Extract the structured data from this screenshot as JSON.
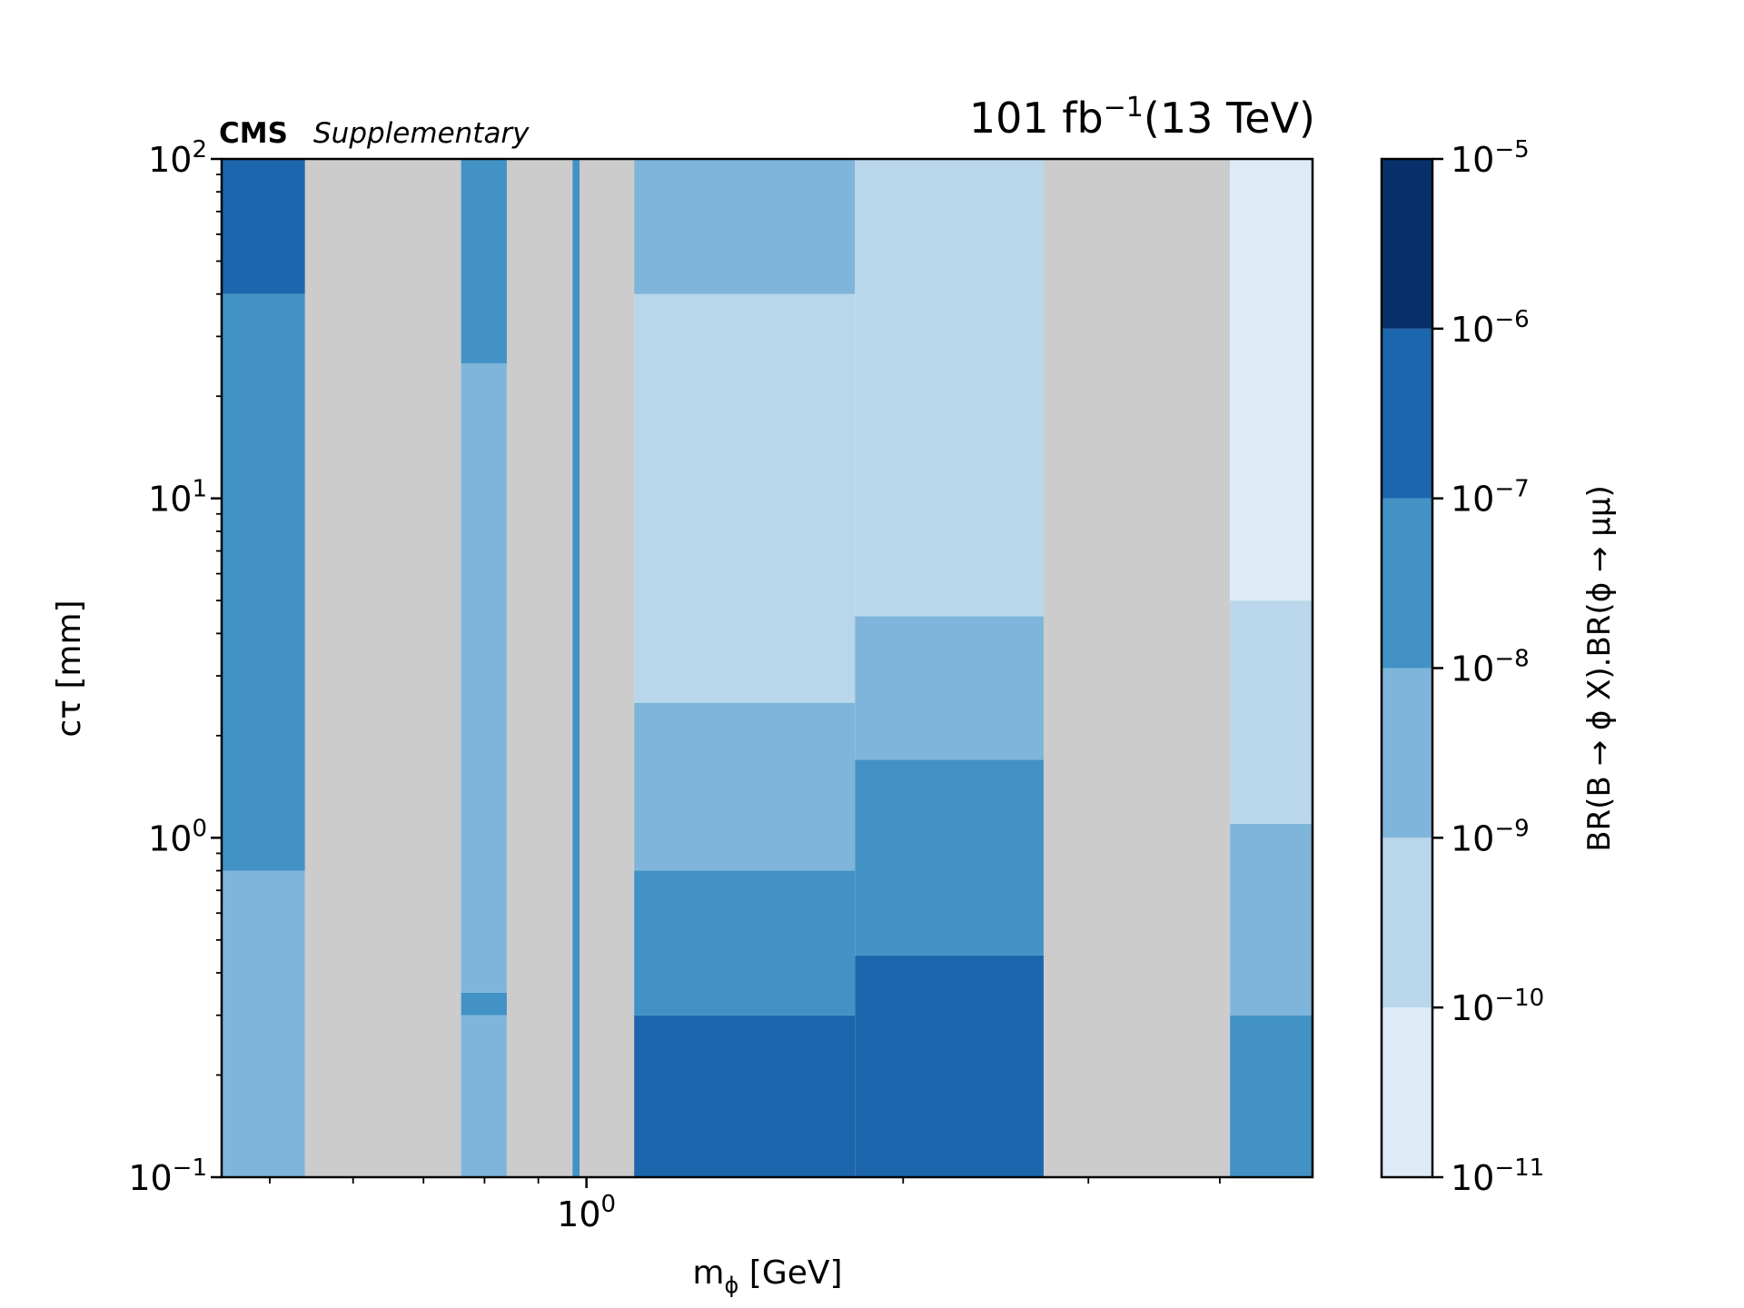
{
  "chart_data": {
    "type": "heatmap",
    "experiment": "CMS",
    "experiment_tag": "Supplementary",
    "lumi_value": "101 fb",
    "lumi_exp": "−1",
    "energy": "(13 TeV)",
    "xlabel": {
      "main": "m",
      "sub": "ϕ",
      "rest": " [GeV]"
    },
    "ylabel": "cτ [mm]",
    "colorbar_label": "BR(B → ϕ X).BR(ϕ → μμ)",
    "x_scale": "log",
    "y_scale": "log",
    "xlim": [
      0.45,
      4.9
    ],
    "ylim": [
      0.1,
      100
    ],
    "y_ticks": [
      {
        "value": 0.1,
        "base": "10",
        "exp": "−1"
      },
      {
        "value": 1,
        "base": "10",
        "exp": "0"
      },
      {
        "value": 10,
        "base": "10",
        "exp": "1"
      },
      {
        "value": 100,
        "base": "10",
        "exp": "2"
      }
    ],
    "x_ticks": [
      {
        "value": 1,
        "base": "10",
        "exp": "0"
      }
    ],
    "colorbar": {
      "scale": "log",
      "levels": [
        {
          "from": 1e-11,
          "to": 1e-10,
          "color": "#deebf7"
        },
        {
          "from": 1e-10,
          "to": 1e-09,
          "color": "#b9d6ea"
        },
        {
          "from": 1e-09,
          "to": 1e-08,
          "color": "#7fb5da"
        },
        {
          "from": 1e-08,
          "to": 1e-07,
          "color": "#4292c6"
        },
        {
          "from": 1e-07,
          "to": 1e-06,
          "color": "#1c66ad"
        },
        {
          "from": 1e-06,
          "to": 1e-05,
          "color": "#08306b"
        }
      ],
      "ticks": [
        {
          "base": "10",
          "exp": "−11"
        },
        {
          "base": "10",
          "exp": "−10"
        },
        {
          "base": "10",
          "exp": "−9"
        },
        {
          "base": "10",
          "exp": "−8"
        },
        {
          "base": "10",
          "exp": "−7"
        },
        {
          "base": "10",
          "exp": "−6"
        },
        {
          "base": "10",
          "exp": "−5"
        }
      ]
    },
    "masked_color": "#cccccc",
    "masked_mass_ranges_gev": [
      [
        0.54,
        0.76
      ],
      [
        0.84,
        0.97
      ],
      [
        0.985,
        1.11
      ],
      [
        2.72,
        4.09
      ]
    ],
    "mass_bands": [
      {
        "x_range": [
          0.45,
          0.54
        ],
        "bands": [
          {
            "level": 2,
            "ct_below": 0.8
          },
          {
            "level": 3,
            "ct_below": 40
          },
          {
            "level": 4,
            "ct_below": 100
          }
        ]
      },
      {
        "x_range": [
          0.76,
          0.84
        ],
        "bands": [
          {
            "level": 2,
            "ct_below": 0.3
          },
          {
            "level": 3,
            "ct_below": 0.35
          },
          {
            "level": 2,
            "ct_below": 25
          },
          {
            "level": 3,
            "ct_below": 100
          }
        ]
      },
      {
        "x_range": [
          0.97,
          0.985
        ],
        "bands": [
          {
            "level": 3,
            "ct_below": 100
          }
        ]
      },
      {
        "x_range": [
          1.11,
          1.8
        ],
        "bands": [
          {
            "level": 4,
            "ct_below": 0.3
          },
          {
            "level": 3,
            "ct_below": 0.8
          },
          {
            "level": 2,
            "ct_below": 2.5
          },
          {
            "level": 1,
            "ct_below": 40
          },
          {
            "level": 2,
            "ct_below": 100
          }
        ]
      },
      {
        "x_range": [
          1.8,
          2.72
        ],
        "bands": [
          {
            "level": 4,
            "ct_below": 0.45
          },
          {
            "level": 3,
            "ct_below": 1.7
          },
          {
            "level": 2,
            "ct_below": 4.5
          },
          {
            "level": 1,
            "ct_below": 100
          }
        ]
      },
      {
        "x_range": [
          4.09,
          4.9
        ],
        "bands": [
          {
            "level": 3,
            "ct_below": 0.3
          },
          {
            "level": 2,
            "ct_below": 1.1
          },
          {
            "level": 1,
            "ct_below": 5
          },
          {
            "level": 0,
            "ct_below": 100
          }
        ]
      }
    ]
  }
}
